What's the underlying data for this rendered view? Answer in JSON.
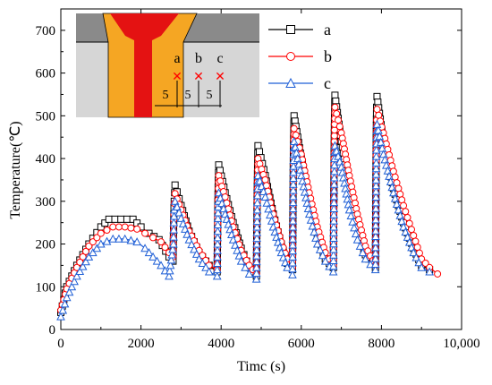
{
  "chart_data": {
    "type": "line",
    "xlabel": "Timc (s)",
    "ylabel": "Temperature(℃)",
    "xlim": [
      0,
      10000
    ],
    "ylim": [
      0,
      750
    ],
    "xticks": [
      0,
      2000,
      4000,
      6000,
      8000,
      10000
    ],
    "xtick_labels": [
      "0",
      "2000",
      "4000",
      "6000",
      "8000",
      "10,000"
    ],
    "yticks": [
      0,
      100,
      200,
      300,
      400,
      500,
      600,
      700
    ],
    "ytick_labels": [
      "0",
      "100",
      "200",
      "300",
      "400",
      "500",
      "600",
      "700"
    ],
    "legend_position": "top-right",
    "series": [
      {
        "name": "a",
        "color": "#000000",
        "marker": "square",
        "points": [
          [
            0,
            40
          ],
          [
            150,
            100
          ],
          [
            400,
            150
          ],
          [
            700,
            200
          ],
          [
            1000,
            240
          ],
          [
            1200,
            258
          ],
          [
            1500,
            258
          ],
          [
            1800,
            258
          ],
          [
            2000,
            240
          ],
          [
            2200,
            225
          ],
          [
            2450,
            210
          ],
          [
            2700,
            170
          ],
          [
            2800,
            160
          ],
          [
            2810,
            220
          ],
          [
            2820,
            270
          ],
          [
            2830,
            300
          ],
          [
            2840,
            320
          ],
          [
            2850,
            338
          ],
          [
            3000,
            290
          ],
          [
            3200,
            230
          ],
          [
            3450,
            180
          ],
          [
            3700,
            150
          ],
          [
            3900,
            135
          ],
          [
            3910,
            220
          ],
          [
            3920,
            300
          ],
          [
            3930,
            350
          ],
          [
            3940,
            385
          ],
          [
            4100,
            320
          ],
          [
            4300,
            250
          ],
          [
            4500,
            190
          ],
          [
            4700,
            145
          ],
          [
            4880,
            125
          ],
          [
            4890,
            220
          ],
          [
            4900,
            320
          ],
          [
            4910,
            380
          ],
          [
            4920,
            430
          ],
          [
            5100,
            360
          ],
          [
            5300,
            270
          ],
          [
            5500,
            200
          ],
          [
            5650,
            155
          ],
          [
            5780,
            140
          ],
          [
            5790,
            260
          ],
          [
            5800,
            380
          ],
          [
            5810,
            450
          ],
          [
            5820,
            500
          ],
          [
            6000,
            400
          ],
          [
            6200,
            300
          ],
          [
            6400,
            220
          ],
          [
            6600,
            165
          ],
          [
            6800,
            145
          ],
          [
            6810,
            280
          ],
          [
            6820,
            420
          ],
          [
            6830,
            500
          ],
          [
            6840,
            548
          ],
          [
            7000,
            440
          ],
          [
            7200,
            330
          ],
          [
            7400,
            240
          ],
          [
            7600,
            175
          ],
          [
            7850,
            145
          ],
          [
            7860,
            300
          ],
          [
            7870,
            450
          ],
          [
            7880,
            520
          ],
          [
            7890,
            545
          ],
          [
            8050,
            440
          ],
          [
            8300,
            330
          ],
          [
            8550,
            250
          ],
          [
            8800,
            190
          ],
          [
            9000,
            150
          ],
          [
            9200,
            140
          ]
        ]
      },
      {
        "name": "b",
        "color": "#ff0000",
        "marker": "circle",
        "points": [
          [
            0,
            45
          ],
          [
            150,
            95
          ],
          [
            400,
            145
          ],
          [
            700,
            195
          ],
          [
            1000,
            225
          ],
          [
            1300,
            240
          ],
          [
            1600,
            240
          ],
          [
            1900,
            235
          ],
          [
            2100,
            225
          ],
          [
            2300,
            215
          ],
          [
            2500,
            205
          ],
          [
            2700,
            180
          ],
          [
            2800,
            170
          ],
          [
            2810,
            230
          ],
          [
            2820,
            270
          ],
          [
            2830,
            295
          ],
          [
            2850,
            318
          ],
          [
            3000,
            280
          ],
          [
            3200,
            230
          ],
          [
            3450,
            185
          ],
          [
            3700,
            150
          ],
          [
            3900,
            140
          ],
          [
            3910,
            220
          ],
          [
            3920,
            290
          ],
          [
            3930,
            330
          ],
          [
            3940,
            360
          ],
          [
            4100,
            310
          ],
          [
            4300,
            240
          ],
          [
            4500,
            185
          ],
          [
            4700,
            150
          ],
          [
            4880,
            130
          ],
          [
            4890,
            220
          ],
          [
            4900,
            300
          ],
          [
            4910,
            360
          ],
          [
            4920,
            400
          ],
          [
            5100,
            350
          ],
          [
            5300,
            270
          ],
          [
            5500,
            205
          ],
          [
            5650,
            165
          ],
          [
            5780,
            145
          ],
          [
            5790,
            250
          ],
          [
            5800,
            360
          ],
          [
            5810,
            430
          ],
          [
            5820,
            470
          ],
          [
            6000,
            410
          ],
          [
            6200,
            320
          ],
          [
            6400,
            240
          ],
          [
            6600,
            180
          ],
          [
            6800,
            150
          ],
          [
            6810,
            270
          ],
          [
            6820,
            400
          ],
          [
            6830,
            480
          ],
          [
            6840,
            520
          ],
          [
            7000,
            460
          ],
          [
            7200,
            360
          ],
          [
            7400,
            270
          ],
          [
            7600,
            195
          ],
          [
            7850,
            150
          ],
          [
            7860,
            280
          ],
          [
            7870,
            420
          ],
          [
            7880,
            490
          ],
          [
            7890,
            515
          ],
          [
            8050,
            460
          ],
          [
            8300,
            370
          ],
          [
            8550,
            290
          ],
          [
            8800,
            220
          ],
          [
            9000,
            165
          ],
          [
            9200,
            145
          ],
          [
            9400,
            130
          ]
        ]
      },
      {
        "name": "c",
        "color": "#1f5fd6",
        "marker": "triangle",
        "points": [
          [
            0,
            30
          ],
          [
            150,
            75
          ],
          [
            400,
            125
          ],
          [
            700,
            170
          ],
          [
            1000,
            200
          ],
          [
            1300,
            212
          ],
          [
            1600,
            212
          ],
          [
            1900,
            205
          ],
          [
            2100,
            190
          ],
          [
            2300,
            170
          ],
          [
            2500,
            150
          ],
          [
            2700,
            125
          ],
          [
            2810,
            200
          ],
          [
            2820,
            250
          ],
          [
            2830,
            280
          ],
          [
            2850,
            300
          ],
          [
            3000,
            260
          ],
          [
            3200,
            210
          ],
          [
            3450,
            165
          ],
          [
            3700,
            135
          ],
          [
            3900,
            125
          ],
          [
            3910,
            200
          ],
          [
            3920,
            260
          ],
          [
            3930,
            300
          ],
          [
            3940,
            320
          ],
          [
            4100,
            270
          ],
          [
            4300,
            210
          ],
          [
            4500,
            160
          ],
          [
            4700,
            130
          ],
          [
            4880,
            118
          ],
          [
            4890,
            200
          ],
          [
            4900,
            280
          ],
          [
            4910,
            330
          ],
          [
            4920,
            360
          ],
          [
            5100,
            310
          ],
          [
            5300,
            240
          ],
          [
            5500,
            180
          ],
          [
            5650,
            145
          ],
          [
            5780,
            128
          ],
          [
            5790,
            240
          ],
          [
            5800,
            340
          ],
          [
            5810,
            410
          ],
          [
            5820,
            440
          ],
          [
            6000,
            360
          ],
          [
            6200,
            270
          ],
          [
            6400,
            200
          ],
          [
            6600,
            160
          ],
          [
            6800,
            135
          ],
          [
            6810,
            240
          ],
          [
            6820,
            340
          ],
          [
            6830,
            400
          ],
          [
            6840,
            430
          ],
          [
            7000,
            380
          ],
          [
            7200,
            280
          ],
          [
            7400,
            210
          ],
          [
            7600,
            165
          ],
          [
            7850,
            140
          ],
          [
            7860,
            270
          ],
          [
            7870,
            390
          ],
          [
            7880,
            450
          ],
          [
            7890,
            480
          ],
          [
            8050,
            410
          ],
          [
            8300,
            320
          ],
          [
            8550,
            240
          ],
          [
            8800,
            180
          ],
          [
            9000,
            145
          ],
          [
            9200,
            135
          ]
        ]
      }
    ],
    "inset": {
      "labels": [
        "a",
        "b",
        "c"
      ],
      "dimensions": [
        "5",
        "5",
        "5"
      ],
      "marker_color": "#ff0000"
    }
  }
}
